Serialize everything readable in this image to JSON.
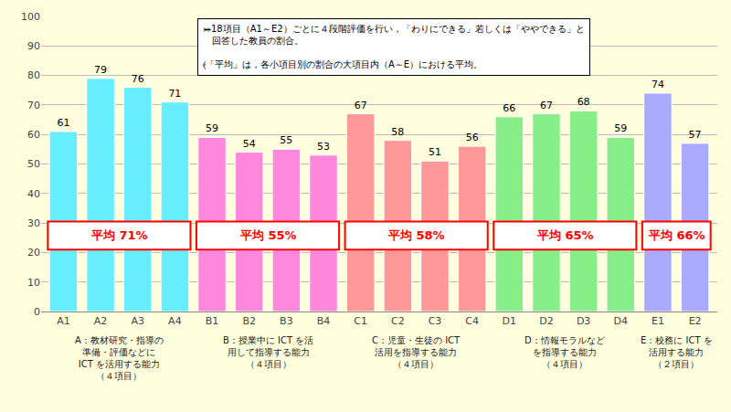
{
  "chart_data": {
    "type": "bar",
    "categories": [
      "A1",
      "A2",
      "A3",
      "A4",
      "B1",
      "B2",
      "B3",
      "B4",
      "C1",
      "C2",
      "C3",
      "C4",
      "D1",
      "D2",
      "D3",
      "D4",
      "E1",
      "E2"
    ],
    "series": [
      {
        "name": "A：教材研究・指導の\n準備・評価などに\nICT を活用する能力\n（４項目）",
        "color": "#66EEFF",
        "values": [
          61,
          79,
          76,
          71,
          null,
          null,
          null,
          null,
          null,
          null,
          null,
          null,
          null,
          null,
          null,
          null,
          null,
          null
        ],
        "annotation": "平均 71%"
      },
      {
        "name": "B：授業中に ICT を活\n用して指導する能力\n（４項目）",
        "color": "#FF88DD",
        "values": [
          null,
          null,
          null,
          null,
          59,
          54,
          55,
          53,
          null,
          null,
          null,
          null,
          null,
          null,
          null,
          null,
          null,
          null
        ],
        "annotation": "平均 55%"
      },
      {
        "name": "C：児童・生徒の ICT\n活用を指導する能力\n（４項目）",
        "color": "#FF9999",
        "values": [
          null,
          null,
          null,
          null,
          null,
          null,
          null,
          null,
          67,
          58,
          51,
          56,
          null,
          null,
          null,
          null,
          null,
          null
        ],
        "annotation": "平均 58%"
      },
      {
        "name": "D：情報モラルなど\nを指導する能力\n（４項目）",
        "color": "#88EE88",
        "values": [
          null,
          null,
          null,
          null,
          null,
          null,
          null,
          null,
          null,
          null,
          null,
          null,
          66,
          67,
          68,
          59,
          null,
          null
        ],
        "annotation": "平均 65%"
      },
      {
        "name": "E：校務に ICT を\n活用する能力\n（２項目）",
        "color": "#AAAAFF",
        "values": [
          null,
          null,
          null,
          null,
          null,
          null,
          null,
          null,
          null,
          null,
          null,
          null,
          null,
          null,
          null,
          null,
          74,
          57
        ],
        "annotation": "平均 66%"
      }
    ],
    "annotations": [
      "⤘18項目（A1～E2）ごとに４段階評価を行い，「わりにできる」若しくは「ややできる」と\n　回答した教員の割合。\n\n⦑「平均」は，各小項目別の割合の大項目内（A～E）における平均。"
    ],
    "ylim": [
      0,
      100
    ],
    "yticks": [
      0,
      10,
      20,
      30,
      40,
      50,
      60,
      70,
      80,
      90,
      100
    ],
    "grid": true,
    "data_labels": true
  }
}
